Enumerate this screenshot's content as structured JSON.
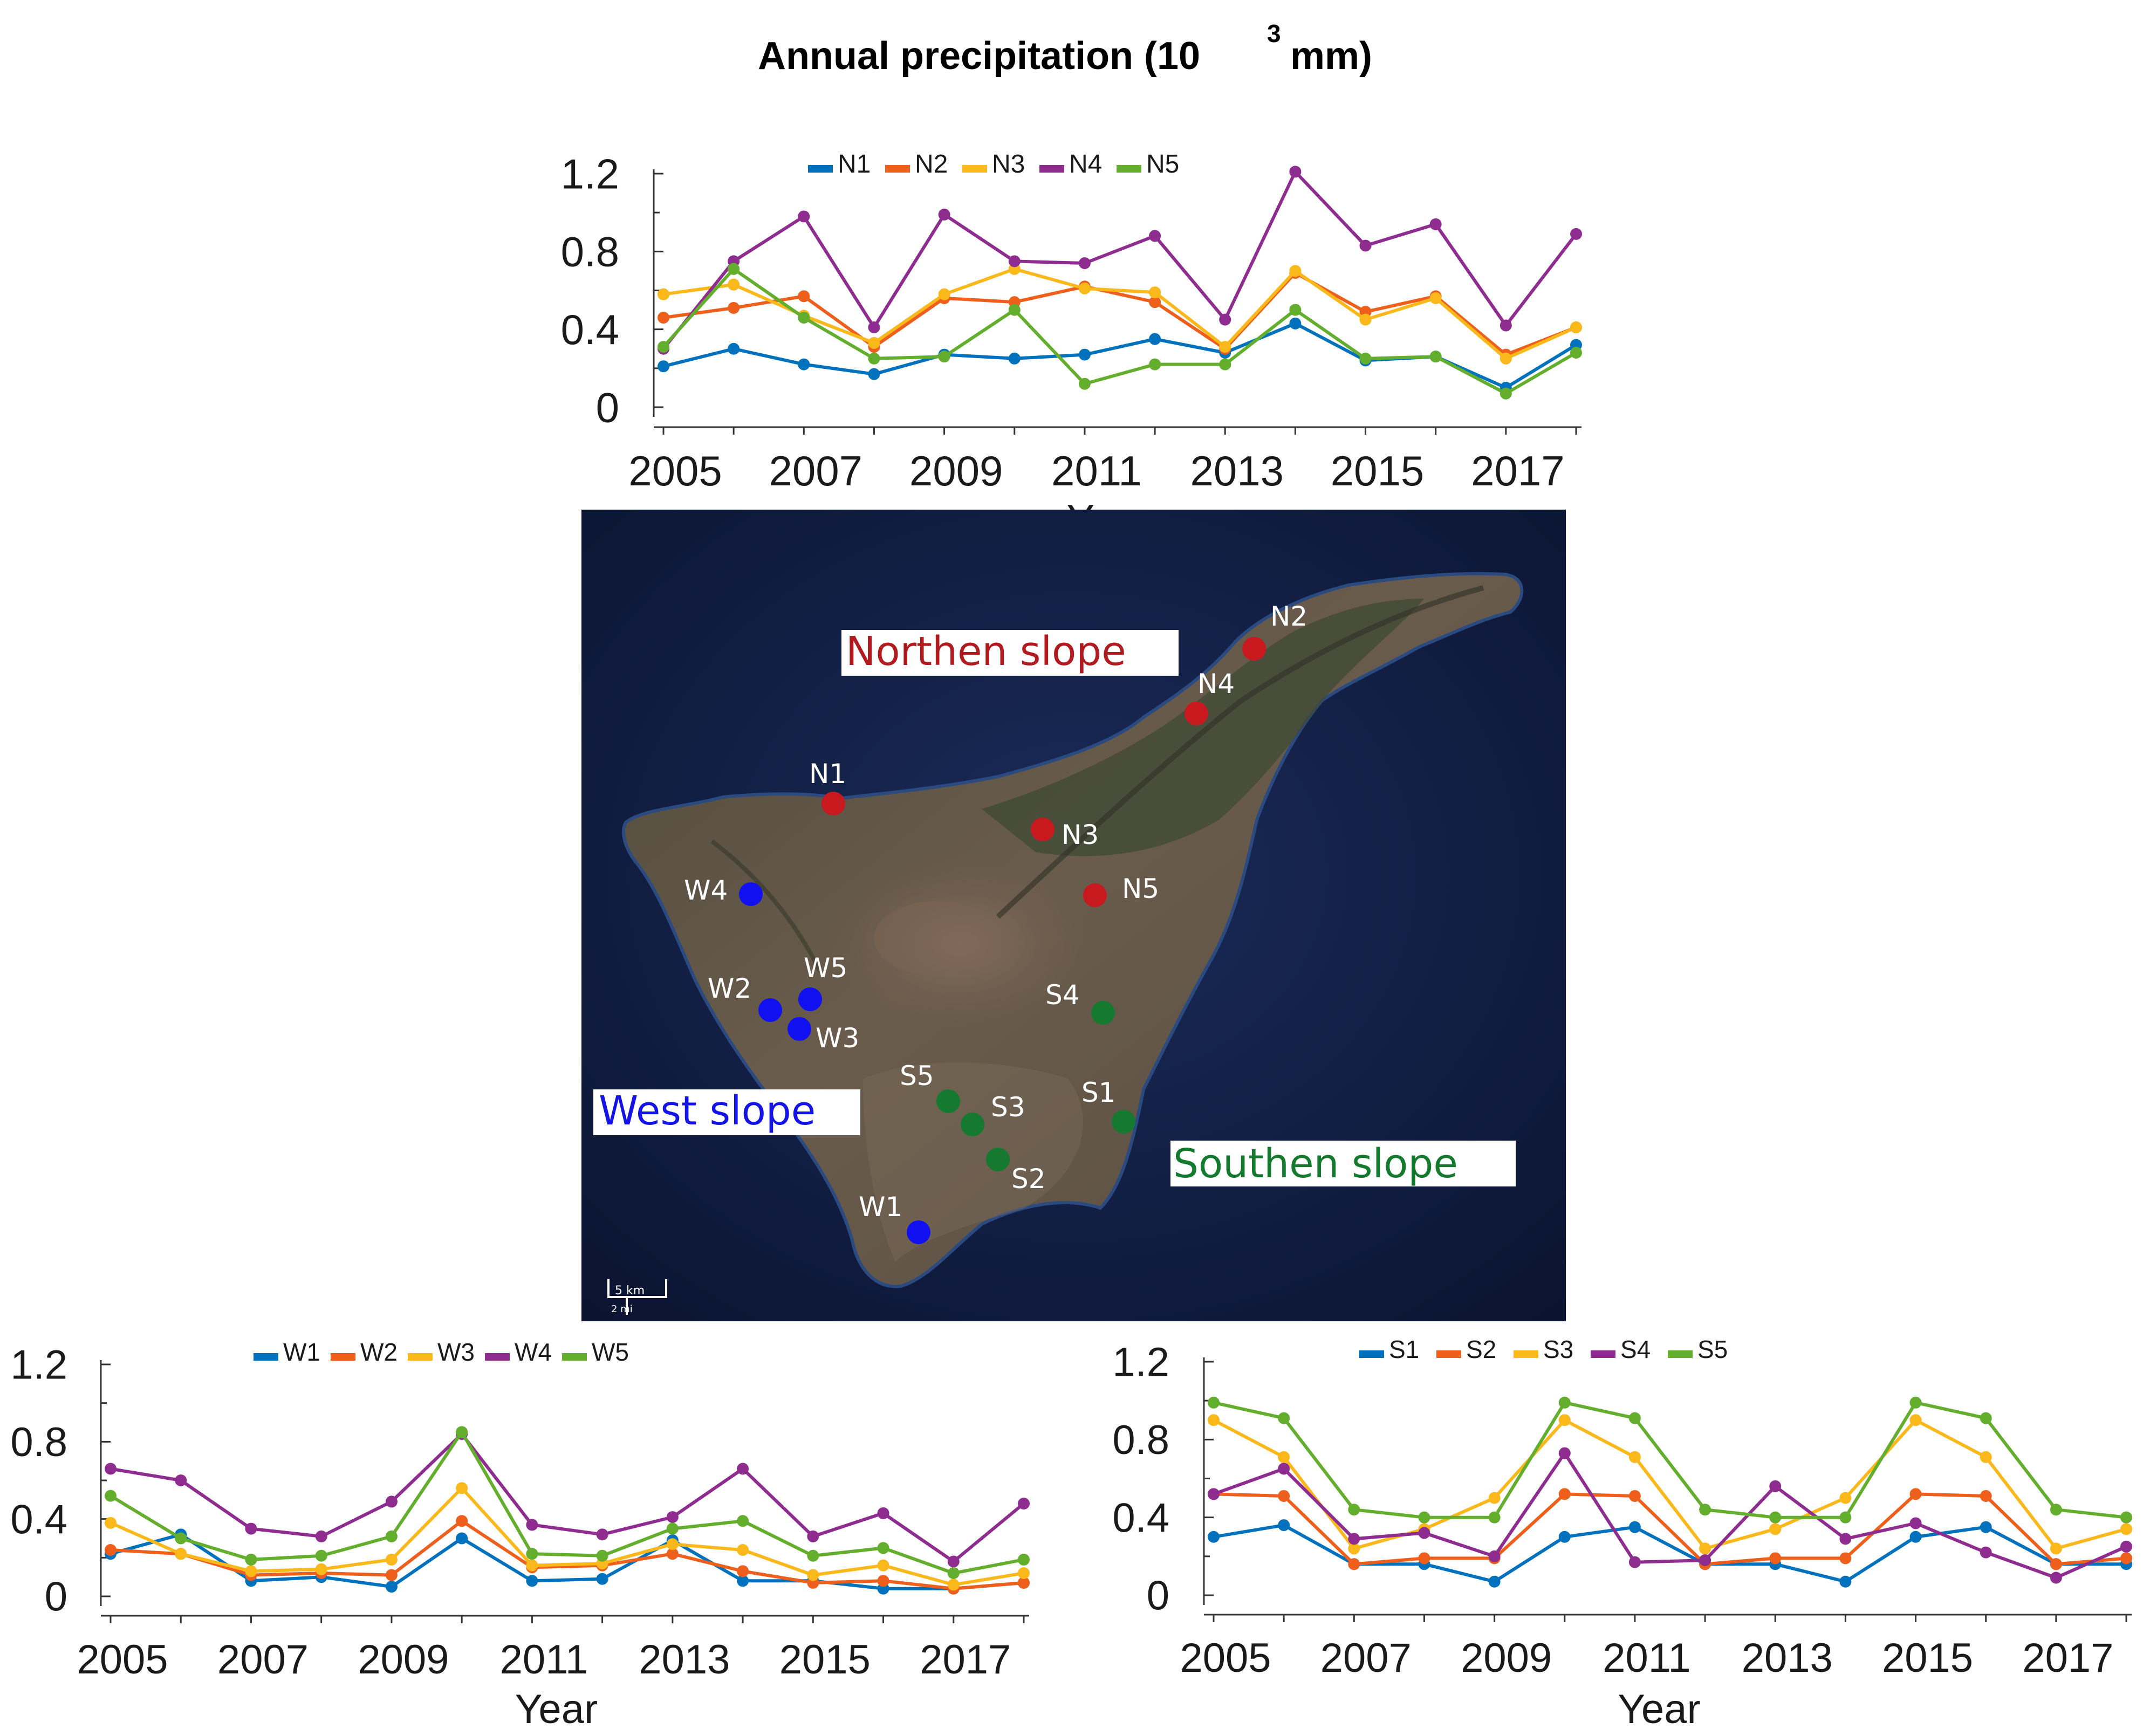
{
  "title": "Annual precipitation (10",
  "title_exp": "3",
  "title_unit": "mm)",
  "chart_data": [
    {
      "id": "north",
      "type": "line",
      "title": "Annual precipitation (10^3 mm)",
      "xlabel": "Year",
      "ylabel": "",
      "ylim": [
        0,
        1.2
      ],
      "yticks": [
        "0",
        "0.4",
        "0.8",
        "1.2"
      ],
      "xticks": [
        "2005",
        "2007",
        "2009",
        "2011",
        "2013",
        "2015",
        "2017"
      ],
      "x": [
        2005,
        2006,
        2007,
        2008,
        2009,
        2010,
        2011,
        2012,
        2013,
        2014,
        2015,
        2016,
        2017,
        2018
      ],
      "legend": "top-center",
      "series": [
        {
          "name": "N1",
          "color": "#0072BD",
          "values": [
            0.21,
            0.3,
            0.22,
            0.17,
            0.27,
            0.25,
            0.27,
            0.35,
            0.28,
            0.43,
            0.24,
            0.26,
            0.1,
            0.32
          ]
        },
        {
          "name": "N2",
          "color": "#EE5F1C",
          "values": [
            0.46,
            0.51,
            0.57,
            0.31,
            0.56,
            0.54,
            0.62,
            0.54,
            0.3,
            0.69,
            0.49,
            0.57,
            0.27,
            0.41
          ]
        },
        {
          "name": "N3",
          "color": "#FBB81A",
          "values": [
            0.58,
            0.63,
            0.47,
            0.33,
            0.58,
            0.71,
            0.61,
            0.59,
            0.31,
            0.7,
            0.45,
            0.56,
            0.25,
            0.41
          ]
        },
        {
          "name": "N4",
          "color": "#8E2C90",
          "values": [
            0.3,
            0.75,
            0.98,
            0.41,
            0.99,
            0.75,
            0.74,
            0.88,
            0.45,
            1.21,
            0.83,
            0.94,
            0.42,
            0.89
          ]
        },
        {
          "name": "N5",
          "color": "#63AE2C",
          "values": [
            0.31,
            0.71,
            0.46,
            0.25,
            0.26,
            0.5,
            0.12,
            0.22,
            0.22,
            0.5,
            0.25,
            0.26,
            0.07,
            0.28
          ]
        }
      ]
    },
    {
      "id": "west",
      "type": "line",
      "xlabel": "Year",
      "ylabel": "",
      "ylim": [
        0,
        1.2
      ],
      "yticks": [
        "0",
        "0.4",
        "0.8",
        "1.2"
      ],
      "xticks": [
        "2005",
        "2007",
        "2009",
        "2011",
        "2013",
        "2015",
        "2017"
      ],
      "x": [
        2005,
        2006,
        2007,
        2008,
        2009,
        2010,
        2011,
        2012,
        2013,
        2014,
        2015,
        2016,
        2017,
        2018
      ],
      "legend": "top-center",
      "series": [
        {
          "name": "W1",
          "color": "#0072BD",
          "values": [
            0.22,
            0.32,
            0.08,
            0.1,
            0.05,
            0.3,
            0.08,
            0.09,
            0.29,
            0.08,
            0.08,
            0.04,
            0.04,
            0.07
          ]
        },
        {
          "name": "W2",
          "color": "#EE5F1C",
          "values": [
            0.24,
            0.22,
            0.11,
            0.12,
            0.11,
            0.39,
            0.15,
            0.16,
            0.22,
            0.13,
            0.07,
            0.08,
            0.04,
            0.07
          ]
        },
        {
          "name": "W3",
          "color": "#FBB81A",
          "values": [
            0.38,
            0.22,
            0.13,
            0.14,
            0.19,
            0.56,
            0.16,
            0.17,
            0.27,
            0.24,
            0.11,
            0.16,
            0.06,
            0.12
          ]
        },
        {
          "name": "W4",
          "color": "#8E2C90",
          "values": [
            0.66,
            0.6,
            0.35,
            0.31,
            0.49,
            0.84,
            0.37,
            0.32,
            0.41,
            0.66,
            0.31,
            0.43,
            0.18,
            0.48
          ]
        },
        {
          "name": "W5",
          "color": "#63AE2C",
          "values": [
            0.52,
            0.3,
            0.19,
            0.21,
            0.31,
            0.85,
            0.22,
            0.21,
            0.35,
            0.39,
            0.21,
            0.25,
            0.12,
            0.19
          ]
        }
      ]
    },
    {
      "id": "south",
      "type": "line",
      "xlabel": "Year",
      "ylabel": "",
      "ylim": [
        0,
        1.2
      ],
      "yticks": [
        "0",
        "0.4",
        "0.8",
        "1.2"
      ],
      "xticks": [
        "2005",
        "2007",
        "2009",
        "2011",
        "2013",
        "2015",
        "2017"
      ],
      "x": [
        2005,
        2006,
        2007,
        2008,
        2009,
        2010,
        2011,
        2012,
        2013,
        2014,
        2015,
        2016,
        2017,
        2018
      ],
      "legend": "top-center",
      "series": [
        {
          "name": "S1",
          "color": "#0072BD",
          "values": [
            0.3,
            0.36,
            0.16,
            0.16,
            0.07,
            0.3,
            0.35,
            0.16,
            0.16,
            0.07,
            0.3,
            0.35,
            0.16,
            0.16
          ]
        },
        {
          "name": "S2",
          "color": "#EE5F1C",
          "values": [
            0.52,
            0.51,
            0.16,
            0.19,
            0.19,
            0.52,
            0.51,
            0.16,
            0.19,
            0.19,
            0.52,
            0.51,
            0.16,
            0.19
          ]
        },
        {
          "name": "S3",
          "color": "#FBB81A",
          "values": [
            0.9,
            0.71,
            0.24,
            0.34,
            0.5,
            0.9,
            0.71,
            0.24,
            0.34,
            0.5,
            0.9,
            0.71,
            0.24,
            0.34
          ]
        },
        {
          "name": "S4",
          "color": "#8E2C90",
          "values": [
            0.52,
            0.65,
            0.29,
            0.32,
            0.2,
            0.73,
            0.17,
            0.18,
            0.56,
            0.29,
            0.37,
            0.22,
            0.09,
            0.25
          ]
        },
        {
          "name": "S5",
          "color": "#63AE2C",
          "values": [
            0.99,
            0.91,
            0.44,
            0.4,
            0.4,
            0.99,
            0.91,
            0.44,
            0.4,
            0.4,
            0.99,
            0.91,
            0.44,
            0.4
          ]
        }
      ]
    }
  ],
  "map": {
    "regions": [
      {
        "id": "north",
        "label": "Northen slope",
        "color": "#B11A1E"
      },
      {
        "id": "west",
        "label": "West slope",
        "color": "#1414E6"
      },
      {
        "id": "south",
        "label": "Southen slope",
        "color": "#137A2E"
      }
    ],
    "stations": [
      {
        "label": "N1",
        "color": "#C8191E"
      },
      {
        "label": "N2",
        "color": "#C8191E"
      },
      {
        "label": "N3",
        "color": "#C8191E"
      },
      {
        "label": "N4",
        "color": "#C8191E"
      },
      {
        "label": "N5",
        "color": "#C8191E"
      },
      {
        "label": "W1",
        "color": "#1010F0"
      },
      {
        "label": "W2",
        "color": "#1010F0"
      },
      {
        "label": "W3",
        "color": "#1010F0"
      },
      {
        "label": "W4",
        "color": "#1010F0"
      },
      {
        "label": "W5",
        "color": "#1010F0"
      },
      {
        "label": "S1",
        "color": "#157A30"
      },
      {
        "label": "S2",
        "color": "#157A30"
      },
      {
        "label": "S3",
        "color": "#157A30"
      },
      {
        "label": "S4",
        "color": "#157A30"
      },
      {
        "label": "S5",
        "color": "#157A30"
      }
    ],
    "scale_km": "5 km",
    "scale_mi": "2 mi",
    "ocean_color": "#0F1C3C",
    "land_color": "#5C5548"
  }
}
